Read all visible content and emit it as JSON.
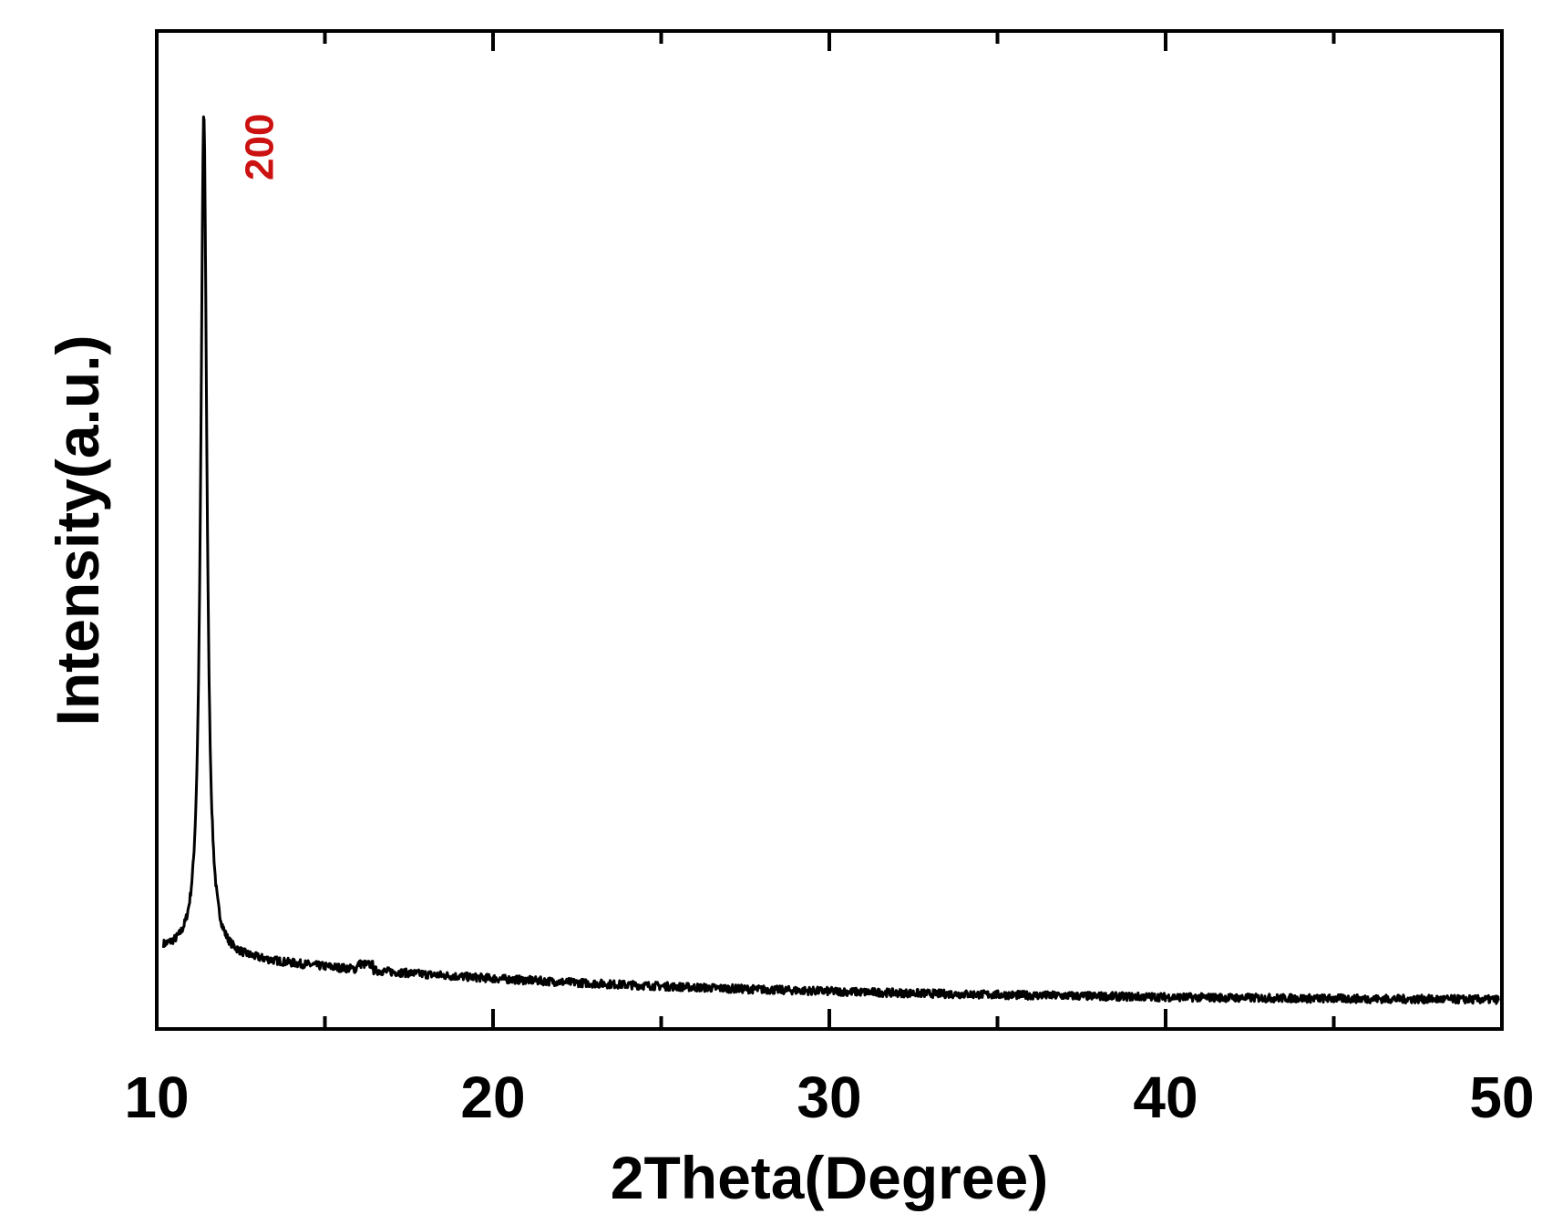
{
  "chart_data": {
    "type": "line",
    "xlabel": "2Theta(Degree)",
    "ylabel": "Intensity(a.u.)",
    "xlim": [
      10,
      50
    ],
    "ylim": [
      0,
      100
    ],
    "x_ticks": [
      10,
      20,
      30,
      40,
      50
    ],
    "x_tick_labels": [
      "10",
      "20",
      "30",
      "40",
      "50"
    ],
    "y_ticks_shown": false,
    "grid": false,
    "legend": "none",
    "colors": {
      "line": "#000000",
      "annotation": "#cc1111"
    },
    "series": [
      {
        "peak": {
          "x": 11.4,
          "y": 100,
          "fwhm": 0.22
        },
        "background": {
          "start_y": 8.2,
          "end_y": 2.6
        },
        "x": [
          10.2,
          10.6,
          11.0,
          11.2,
          11.3,
          11.4,
          11.5,
          11.6,
          11.8,
          12.2,
          13,
          14,
          15,
          16,
          16.1,
          16.4,
          17,
          18,
          19,
          20,
          22,
          25,
          28,
          30,
          33,
          35,
          38,
          40,
          42,
          45,
          48,
          49.9
        ],
        "y": [
          8.2,
          8.9,
          11.8,
          30,
          74,
          100,
          68,
          24,
          11,
          8.6,
          7.9,
          7.4,
          7.1,
          6.9,
          7.6,
          7.1,
          6.5,
          6.1,
          5.9,
          5.7,
          5.1,
          4.5,
          4.1,
          3.9,
          3.6,
          3.5,
          3.3,
          3.2,
          3.1,
          3.0,
          2.8,
          2.6
        ]
      }
    ],
    "annotations": [
      {
        "text": "200",
        "x": 11.4,
        "rotation": "vertical"
      }
    ]
  }
}
